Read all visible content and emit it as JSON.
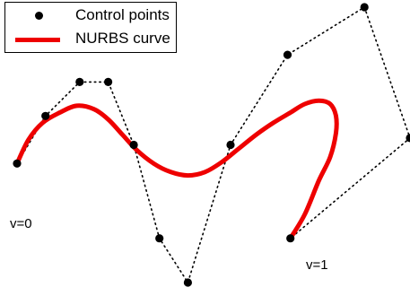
{
  "chart_data": {
    "type": "scatter",
    "title": "",
    "xlabel": "",
    "ylabel": "",
    "grid": false,
    "axes_visible": false,
    "legend_placement": "top-left",
    "colors": {
      "control_points": "#000000",
      "control_polygon": "#000000",
      "nurbs_curve": "#ee0000"
    },
    "series": [
      {
        "name": "Control points",
        "style": "markers with dotted connecting polygon",
        "points": [
          {
            "x": 0,
            "y": 10
          },
          {
            "x": 10,
            "y": 38
          },
          {
            "x": 22,
            "y": 58
          },
          {
            "x": 32,
            "y": 58
          },
          {
            "x": 41,
            "y": 21
          },
          {
            "x": 50,
            "y": -34
          },
          {
            "x": 60,
            "y": -60
          },
          {
            "x": 75,
            "y": 21
          },
          {
            "x": 95,
            "y": 74
          },
          {
            "x": 122,
            "y": 102
          },
          {
            "x": 138,
            "y": 25
          },
          {
            "x": 96,
            "y": -34
          }
        ]
      },
      {
        "name": "NURBS curve",
        "style": "thick solid line",
        "points": [
          {
            "x": 0,
            "y": 10
          },
          {
            "x": 4,
            "y": 24
          },
          {
            "x": 9,
            "y": 34
          },
          {
            "x": 15,
            "y": 40
          },
          {
            "x": 21,
            "y": 44
          },
          {
            "x": 27,
            "y": 42
          },
          {
            "x": 32,
            "y": 36
          },
          {
            "x": 37,
            "y": 27
          },
          {
            "x": 42,
            "y": 18
          },
          {
            "x": 48,
            "y": 10
          },
          {
            "x": 54,
            "y": 5
          },
          {
            "x": 60,
            "y": 3
          },
          {
            "x": 66,
            "y": 5
          },
          {
            "x": 72,
            "y": 11
          },
          {
            "x": 78,
            "y": 19
          },
          {
            "x": 84,
            "y": 27
          },
          {
            "x": 90,
            "y": 34
          },
          {
            "x": 96,
            "y": 40
          },
          {
            "x": 101,
            "y": 45
          },
          {
            "x": 106,
            "y": 47
          },
          {
            "x": 110,
            "y": 45
          },
          {
            "x": 112,
            "y": 38
          },
          {
            "x": 112,
            "y": 28
          },
          {
            "x": 110,
            "y": 14
          },
          {
            "x": 106,
            "y": 0
          },
          {
            "x": 101,
            "y": -20
          },
          {
            "x": 96,
            "y": -34
          }
        ]
      }
    ],
    "xlim": [
      0,
      138
    ],
    "ylim": [
      -60,
      102
    ],
    "annotations": [
      {
        "id": "start",
        "text": "v=0"
      },
      {
        "id": "end",
        "text": "v=1"
      }
    ],
    "legend": {
      "entries": [
        "Control points",
        "NURBS curve"
      ]
    }
  }
}
